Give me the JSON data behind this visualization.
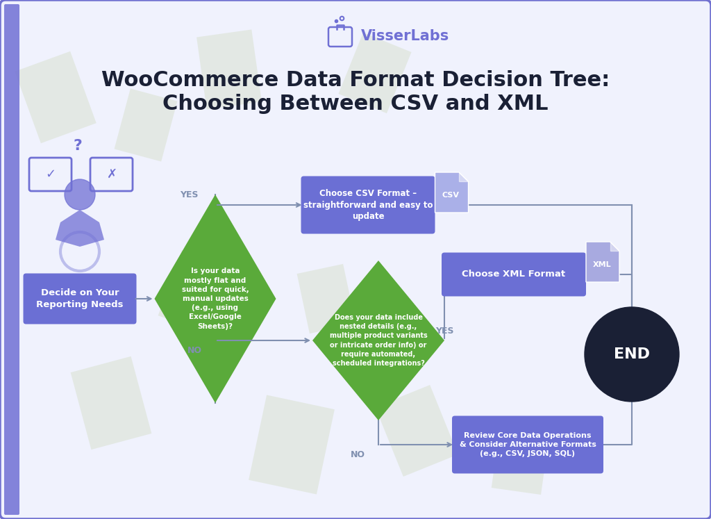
{
  "title_line1": "WooCommerce Data Format Decision Tree:",
  "title_line2": "Choosing Between CSV and XML",
  "brand": "VisserLabs",
  "bg_color": "#f0f2fd",
  "border_color": "#7070d0",
  "box_blue": "#6b6fd4",
  "end_dark": "#1a2035",
  "diamond_green": "#5aaa3a",
  "arrow_color": "#8090b0",
  "title_color": "#1a2035",
  "brand_color": "#7070d4",
  "csv_badge_bg": "#aab0e8",
  "xml_badge_bg": "#a8aae0",
  "left_bar_color": "#7070d4",
  "paper_color": "#ccd8b8"
}
